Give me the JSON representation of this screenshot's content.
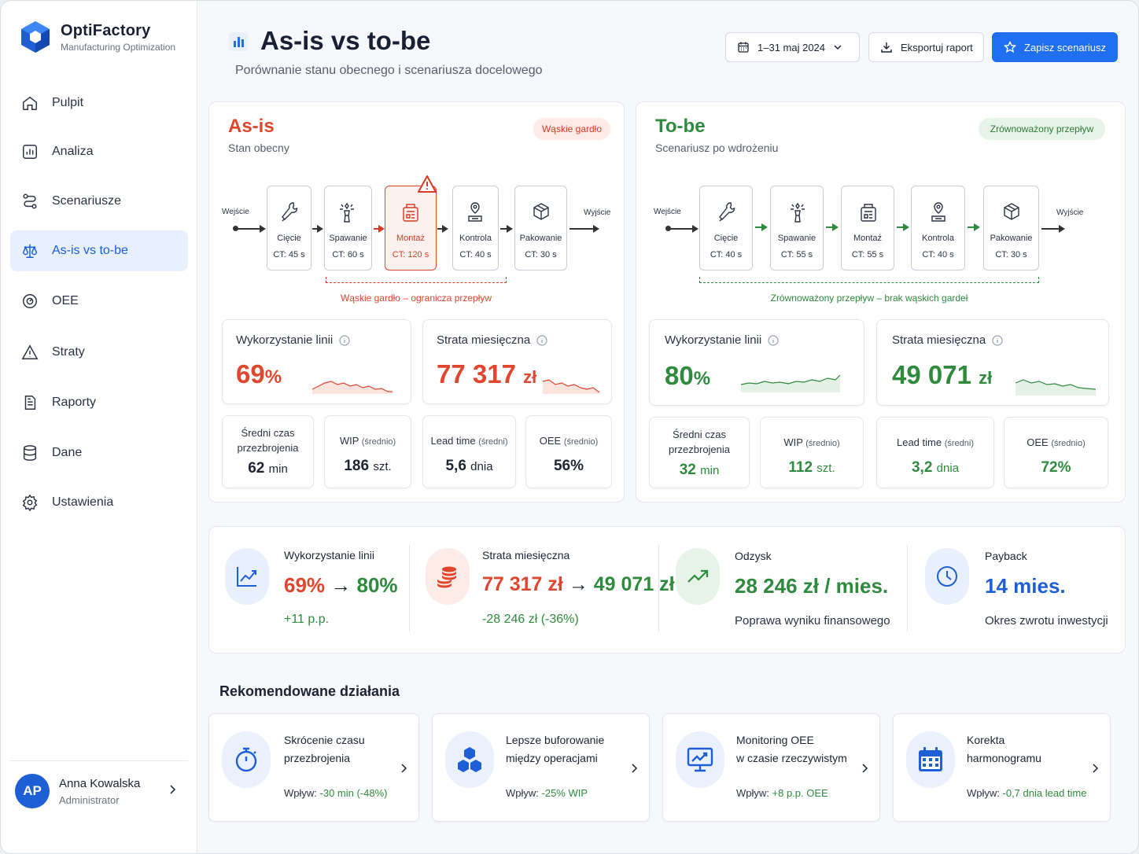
{
  "app": {
    "name": "OptiFactory",
    "tagline": "Manufacturing Optimization"
  },
  "nav": [
    {
      "label": "Pulpit",
      "icon": "home-icon"
    },
    {
      "label": "Analiza",
      "icon": "bar-chart-icon"
    },
    {
      "label": "Scenariusze",
      "icon": "route-icon"
    },
    {
      "label": "As-is vs to-be",
      "icon": "scales-icon",
      "active": true
    },
    {
      "label": "OEE",
      "icon": "gauge-icon"
    },
    {
      "label": "Straty",
      "icon": "warning-icon"
    },
    {
      "label": "Raporty",
      "icon": "document-icon"
    },
    {
      "label": "Dane",
      "icon": "database-icon"
    },
    {
      "label": "Ustawienia",
      "icon": "gear-icon"
    }
  ],
  "user": {
    "initials": "AP",
    "name": "Anna Kowalska",
    "role": "Administrator"
  },
  "header": {
    "title": "As-is vs to-be",
    "subtitle": "Porównanie stanu obecnego i scenariusza docelowego",
    "date_range": "1–31 maj 2024",
    "export_label": "Eksportuj raport",
    "save_label": "Zapisz scenariusz"
  },
  "asis": {
    "title": "As-is",
    "subtitle": "Stan obecny",
    "tag": "Wąskie gardło",
    "flow_in": "Wejście",
    "flow_out": "Wyjście",
    "stations": [
      {
        "name": "Cięcie",
        "ct": "CT: 45 s"
      },
      {
        "name": "Spawanie",
        "ct": "CT: 60 s"
      },
      {
        "name": "Montaż",
        "ct": "CT: 120 s",
        "bottleneck": true
      },
      {
        "name": "Kontrola",
        "ct": "CT: 40 s"
      },
      {
        "name": "Pakowanie",
        "ct": "CT: 30 s"
      }
    ],
    "bracket_label": "Wąskie gardło – ogranicza przepływ",
    "utilization": {
      "label": "Wykorzystanie linii",
      "value": "69",
      "unit": "%"
    },
    "loss": {
      "label": "Strata miesięczna",
      "value": "77 317",
      "unit": "zł"
    },
    "kpis": [
      {
        "label": "Średni czas przezbrojenia",
        "value": "62",
        "unit": "min"
      },
      {
        "label": "WIP",
        "suffix": "(średnio)",
        "value": "186",
        "unit": "szt."
      },
      {
        "label": "Lead time",
        "suffix": "(średni)",
        "value": "5,6",
        "unit": "dnia"
      },
      {
        "label": "OEE",
        "suffix": "(średnio)",
        "value": "56%",
        "unit": ""
      }
    ]
  },
  "tobe": {
    "title": "To-be",
    "subtitle": "Scenariusz po wdrożeniu",
    "tag": "Zrównoważony przepływ",
    "flow_in": "Wejście",
    "flow_out": "Wyjście",
    "stations": [
      {
        "name": "Cięcie",
        "ct": "CT: 40 s"
      },
      {
        "name": "Spawanie",
        "ct": "CT: 55 s"
      },
      {
        "name": "Montaż",
        "ct": "CT: 55 s"
      },
      {
        "name": "Kontrola",
        "ct": "CT: 40 s"
      },
      {
        "name": "Pakowanie",
        "ct": "CT: 30 s"
      }
    ],
    "bracket_label": "Zrównoważony przepływ – brak wąskich gardeł",
    "utilization": {
      "label": "Wykorzystanie linii",
      "value": "80",
      "unit": "%"
    },
    "loss": {
      "label": "Strata miesięczna",
      "value": "49 071",
      "unit": "zł"
    },
    "kpis": [
      {
        "label": "Średni czas przezbrojenia",
        "value": "32",
        "unit": "min"
      },
      {
        "label": "WIP",
        "suffix": "(średnio)",
        "value": "112",
        "unit": "szt."
      },
      {
        "label": "Lead time",
        "suffix": "(średni)",
        "value": "3,2",
        "unit": "dnia"
      },
      {
        "label": "OEE",
        "suffix": "(średnio)",
        "value": "72%",
        "unit": ""
      }
    ]
  },
  "summary": [
    {
      "label": "Wykorzystanie linii",
      "from": "69%",
      "arrow": "→",
      "to": "80%",
      "sub": "+11 p.p."
    },
    {
      "label": "Strata miesięczna",
      "from": "77 317 zł",
      "arrow": "→",
      "to": "49 071 zł",
      "sub": "-28 246 zł (-36%)"
    },
    {
      "label": "Odzysk",
      "value": "28 246 zł / mies.",
      "sub": "Poprawa wyniku finansowego"
    },
    {
      "label": "Payback",
      "value": "14 mies.",
      "sub": "Okres zwrotu inwestycji"
    }
  ],
  "recommendations_title": "Rekomendowane działania",
  "recommendations": [
    {
      "title1": "Skrócenie czasu",
      "title2": "przezbrojenia",
      "impact_prefix": "Wpływ:",
      "impact": "-30 min (-48%)",
      "icon": "stopwatch-icon"
    },
    {
      "title1": "Lepsze buforowanie",
      "title2": "między operacjami",
      "impact_prefix": "Wpływ:",
      "impact": "-25% WIP",
      "icon": "cubes-icon"
    },
    {
      "title1": "Monitoring OEE",
      "title2": "w czasie rzeczywistym",
      "impact_prefix": "Wpływ:",
      "impact": "+8 p.p. OEE",
      "icon": "monitor-chart-icon"
    },
    {
      "title1": "Korekta",
      "title2": "harmonogramu",
      "impact_prefix": "Wpływ:",
      "impact": "-0,7 dnia lead time",
      "icon": "calendar-icon"
    }
  ],
  "colors": {
    "accent": "#1f6ff0",
    "red": "#e0452d",
    "green": "#2f8a3e"
  }
}
